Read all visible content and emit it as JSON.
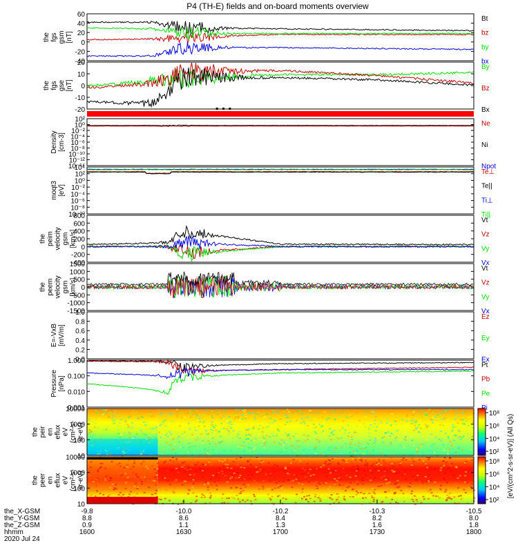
{
  "title": "P4 (TH-E) fields and on-board moments overview",
  "colors": {
    "black": "#000000",
    "red": "#c00000",
    "green": "#00dd00",
    "blue": "#0000dd",
    "bar_red": "#ff0000"
  },
  "panels": [
    {
      "id": "fgs_gsm",
      "ylabel": [
        "the",
        "fgs",
        "gsm",
        "[nT]"
      ],
      "yticks": [
        "60",
        "40",
        "20",
        "0",
        "-20",
        "-40"
      ],
      "legend": [
        {
          "label": "Bt",
          "color": "black"
        },
        {
          "label": "bz",
          "color": "red"
        },
        {
          "label": "by",
          "color": "green"
        },
        {
          "label": "bx",
          "color": "blue"
        }
      ]
    },
    {
      "id": "fgs_gse",
      "ylabel": [
        "the",
        "fgs",
        "gse",
        "[nT]"
      ],
      "yticks": [
        "20",
        "10",
        "0",
        "-10",
        "-20"
      ],
      "legend": [
        {
          "label": "By",
          "color": "green"
        },
        {
          "label": "Bz",
          "color": "red"
        },
        {
          "label": "Bx",
          "color": "black"
        }
      ]
    },
    {
      "id": "density",
      "ylabel": [
        "Density",
        "[cm-3]"
      ],
      "yticks": [
        "10²",
        "10⁰",
        "10⁻²",
        "10⁻⁴",
        "10⁻⁶",
        "10⁻⁸",
        "10⁻¹⁰",
        "10⁻¹²",
        "10⁻¹⁴"
      ],
      "legend": [
        {
          "label": "Ne",
          "color": "red"
        },
        {
          "label": "Ni",
          "color": "black"
        },
        {
          "label": "Npot",
          "color": "blue"
        }
      ]
    },
    {
      "id": "temperature",
      "ylabel": [
        "moqt3",
        "[eV]"
      ],
      "yticks": [
        "10⁴",
        "10²",
        "10⁰",
        "10⁻²",
        "10⁻⁴",
        "10⁻⁶",
        "10⁻⁸",
        "10⁻¹⁰"
      ],
      "legend": [
        {
          "label": "Te⊥",
          "color": "red"
        },
        {
          "label": "Te||",
          "color": "black"
        },
        {
          "label": "Ti⊥",
          "color": "blue"
        },
        {
          "label": "Ti||",
          "color": "green"
        }
      ]
    },
    {
      "id": "peim_velocity",
      "ylabel": [
        "the",
        "peim",
        "velocity",
        "gsm",
        "[km/s]"
      ],
      "yticks": [
        "800",
        "600",
        "400",
        "200",
        "0",
        "-200",
        "-400"
      ],
      "legend": [
        {
          "label": "Vt",
          "color": "black"
        },
        {
          "label": "Vz",
          "color": "red"
        },
        {
          "label": "Vy",
          "color": "green"
        },
        {
          "label": "Vx",
          "color": "blue"
        }
      ]
    },
    {
      "id": "peem_velocity",
      "ylabel": [
        "the",
        "peem",
        "velocity",
        "gsm",
        "[km/s]"
      ],
      "yticks": [
        "1500",
        "1000",
        "500",
        "0",
        "-500",
        "-1000",
        "-1500"
      ],
      "legend": [
        {
          "label": "Vt",
          "color": "black"
        },
        {
          "label": "Vz",
          "color": "red"
        },
        {
          "label": "Vy",
          "color": "green"
        },
        {
          "label": "Vx",
          "color": "blue"
        }
      ]
    },
    {
      "id": "efield",
      "ylabel": [
        "E=-VxB",
        "[mV/m]"
      ],
      "yticks": [
        "1.0",
        "0.8",
        "0.6",
        "0.4",
        "0.2",
        "0.0"
      ],
      "legend": [
        {
          "label": "Ez",
          "color": "red"
        },
        {
          "label": "Ey",
          "color": "green"
        },
        {
          "label": "Ex",
          "color": "blue"
        }
      ]
    },
    {
      "id": "pressure",
      "ylabel": [
        "Pressure",
        "[nPa]"
      ],
      "yticks": [
        "1.000",
        "0.100",
        "0.010",
        "0.001"
      ],
      "legend": [
        {
          "label": "Pt",
          "color": "black"
        },
        {
          "label": "Pb",
          "color": "red"
        },
        {
          "label": "Pe",
          "color": "green"
        },
        {
          "label": "Pi",
          "color": "blue"
        }
      ]
    },
    {
      "id": "peir_spec",
      "ylabel": [
        "the",
        "peir",
        "en",
        "eflux",
        "eV",
        "(cm²-s-",
        "sr-eV)"
      ],
      "yticks": [
        "10000",
        "1000",
        "100",
        "10"
      ],
      "legend": []
    },
    {
      "id": "peer_spec",
      "ylabel": [
        "the",
        "peer",
        "en",
        "eflux",
        "eV",
        "(cm²-s-",
        "sr-eV)"
      ],
      "yticks": [
        "10000",
        "1000",
        "100",
        "10"
      ],
      "legend": []
    }
  ],
  "colorbar": {
    "ticks_top": [
      "10⁸",
      "10⁶",
      "10⁴",
      "10²"
    ],
    "ticks_bottom": [
      "10⁸",
      "10⁶",
      "10⁴",
      "10²"
    ],
    "label": "[eV/(cm^2-s-sr-eV)] (All Qs)"
  },
  "xaxis": {
    "ticks": [
      "-9.8",
      "-10.0",
      "-10.2",
      "-10.3",
      "-10.5"
    ],
    "rows": [
      {
        "label": "the_X-GSM",
        "values": [
          "-9.8",
          "-10.0",
          "-10.2",
          "-10.3",
          "-10.5"
        ]
      },
      {
        "label": "the_Y-GSM",
        "values": [
          "8.8",
          "8.6",
          "8.4",
          "8.2",
          "8.0"
        ]
      },
      {
        "label": "the_Z-GSM",
        "values": [
          "0.9",
          "1.1",
          "1.3",
          "1.6",
          "1.8"
        ]
      },
      {
        "label": "hhmm",
        "values": [
          "1600",
          "1630",
          "1700",
          "1730",
          "1800"
        ]
      }
    ],
    "date": "2020 Jul 24"
  },
  "chart_data": {
    "type": "line",
    "title": "P4 (TH-E) fields and on-board moments overview",
    "x_time_hhmm": [
      "1600",
      "1630",
      "1700",
      "1730",
      "1800"
    ],
    "x_xgsm": [
      -9.8,
      -10.0,
      -10.2,
      -10.3,
      -10.5
    ],
    "x_ygsm": [
      8.8,
      8.6,
      8.4,
      8.2,
      8.0
    ],
    "x_zgsm": [
      0.9,
      1.1,
      1.3,
      1.6,
      1.8
    ],
    "panels": [
      {
        "ylabel": "the fgs gsm [nT]",
        "ylim": [
          -40,
          60
        ],
        "series": [
          {
            "name": "Bt",
            "x": [
              "1600",
              "1620",
              "1630",
              "1700",
              "1730",
              "1800"
            ],
            "values": [
              42,
              42,
              30,
              28,
              26,
              24
            ]
          },
          {
            "name": "bz",
            "x": [
              "1600",
              "1620",
              "1630",
              "1700",
              "1730",
              "1800"
            ],
            "values": [
              5,
              6,
              10,
              16,
              16,
              16
            ]
          },
          {
            "name": "by",
            "x": [
              "1600",
              "1620",
              "1630",
              "1700",
              "1730",
              "1800"
            ],
            "values": [
              30,
              28,
              18,
              18,
              18,
              18
            ]
          },
          {
            "name": "bx",
            "x": [
              "1600",
              "1620",
              "1630",
              "1700",
              "1730",
              "1800"
            ],
            "values": [
              -30,
              -30,
              -12,
              -12,
              -14,
              -16
            ]
          }
        ]
      },
      {
        "ylabel": "the fgs gse [nT]",
        "ylim": [
          -25,
          20
        ],
        "series": [
          {
            "name": "By",
            "x": [
              "1600",
              "1620",
              "1630",
              "1700",
              "1730",
              "1800"
            ],
            "values": [
              -3,
              2,
              5,
              8,
              8,
              10
            ]
          },
          {
            "name": "Bz",
            "x": [
              "1600",
              "1620",
              "1630",
              "1700",
              "1730",
              "1800"
            ],
            "values": [
              -5,
              0,
              10,
              12,
              7,
              0
            ]
          },
          {
            "name": "Bx",
            "x": [
              "1600",
              "1620",
              "1630",
              "1700",
              "1730",
              "1800"
            ],
            "values": [
              -18,
              -20,
              5,
              5,
              3,
              -2
            ]
          }
        ]
      },
      {
        "ylabel": "Density [cm-3]",
        "scale": "log"
      },
      {
        "ylabel": "moqt3 [eV]",
        "scale": "log"
      },
      {
        "ylabel": "the peim velocity gsm [km/s]",
        "ylim": [
          -400,
          800
        ],
        "series": [
          {
            "name": "Vt",
            "x": [
              "1600",
              "1625",
              "1630",
              "1700",
              "1800"
            ],
            "values": [
              50,
              100,
              400,
              60,
              50
            ]
          },
          {
            "name": "Vz",
            "x": [
              "1600",
              "1625",
              "1630",
              "1700",
              "1800"
            ],
            "values": [
              0,
              0,
              -150,
              0,
              0
            ]
          },
          {
            "name": "Vy",
            "x": [
              "1600",
              "1625",
              "1630",
              "1700",
              "1800"
            ],
            "values": [
              0,
              0,
              -200,
              0,
              0
            ]
          },
          {
            "name": "Vx",
            "x": [
              "1600",
              "1625",
              "1630",
              "1700",
              "1800"
            ],
            "values": [
              0,
              0,
              100,
              0,
              0
            ]
          }
        ]
      },
      {
        "ylabel": "the peem velocity gsm [km/s]",
        "ylim": [
          -1500,
          1500
        ],
        "series": [
          {
            "name": "Vt",
            "x": [
              "1600",
              "1625",
              "1640",
              "1700",
              "1800"
            ],
            "values": [
              100,
              1200,
              1200,
              100,
              100
            ]
          }
        ]
      },
      {
        "ylabel": "E=-VxB [mV/m]",
        "ylim": [
          0.0,
          1.0
        ]
      },
      {
        "ylabel": "Pressure [nPa]",
        "scale": "log",
        "ylim": [
          0.001,
          1.0
        ],
        "series": [
          {
            "name": "Pt",
            "x": [
              "1600",
              "1625",
              "1630",
              "1700",
              "1800"
            ],
            "values": [
              0.9,
              0.85,
              0.4,
              0.6,
              0.7
            ]
          },
          {
            "name": "Pb",
            "x": [
              "1600",
              "1625",
              "1630",
              "1700",
              "1800"
            ],
            "values": [
              0.85,
              0.8,
              0.2,
              0.25,
              0.35
            ]
          },
          {
            "name": "Pe",
            "x": [
              "1600",
              "1625",
              "1630",
              "1700",
              "1800"
            ],
            "values": [
              0.03,
              0.008,
              0.08,
              0.15,
              0.2
            ]
          },
          {
            "name": "Pi",
            "x": [
              "1600",
              "1625",
              "1630",
              "1700",
              "1800"
            ],
            "values": [
              0.15,
              0.1,
              0.2,
              0.25,
              0.25
            ]
          }
        ]
      },
      {
        "type": "heatmap",
        "ylabel": "the peir en eflux",
        "ylim": [
          10,
          20000
        ],
        "scale": "log"
      },
      {
        "type": "heatmap",
        "ylabel": "the peer en eflux",
        "ylim": [
          10,
          20000
        ],
        "scale": "log"
      }
    ]
  }
}
